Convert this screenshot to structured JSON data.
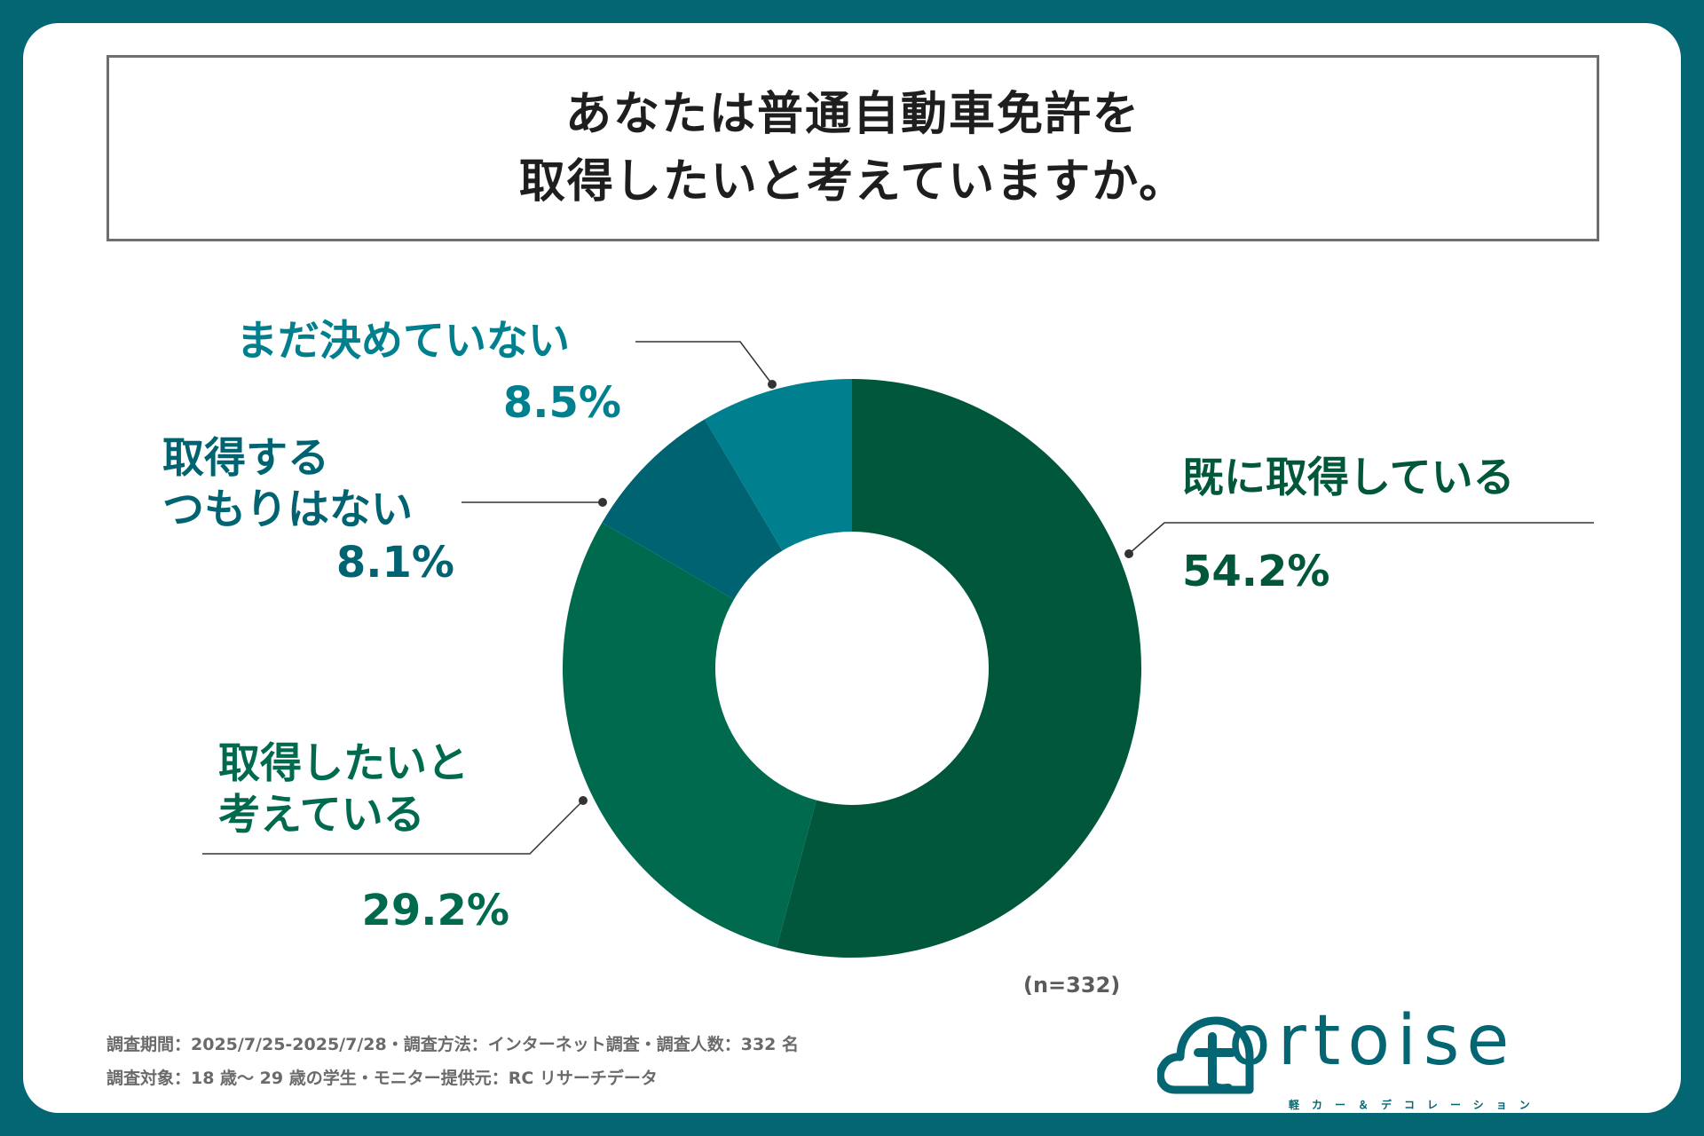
{
  "colors": {
    "background": "#046672",
    "frame": "#ffffff",
    "title_border": "#6e6e6e"
  },
  "title": {
    "line1": "あなたは普通自動車免許を",
    "line2": "取得したいと考えていますか。"
  },
  "sample_size": "(n=332)",
  "footnotes": {
    "line1": "調査期間：2025/7/25-2025/7/28・調査方法：インターネット調査・調査人数：332 名",
    "line2": "調査対象：18 歳〜 29 歳の学生・モニター提供元：RC リサーチデータ"
  },
  "logo": {
    "wordmark": "ortoise",
    "icon_letter": "t",
    "subtitle": "軽カー＆デコレーション"
  },
  "chart_data": {
    "type": "pie",
    "donut": true,
    "start_angle_deg": 0,
    "direction": "clockwise",
    "series": [
      {
        "name": "既に取得している",
        "label_lines": [
          "既に取得している"
        ],
        "value": 54.2,
        "value_label": "54.2%",
        "color": "#00573b",
        "label_color": "#00573b"
      },
      {
        "name": "取得したいと考えている",
        "label_lines": [
          "取得したいと",
          "考えている"
        ],
        "value": 29.2,
        "value_label": "29.2%",
        "color": "#006a4e",
        "label_color": "#006a4e"
      },
      {
        "name": "取得するつもりはない",
        "label_lines": [
          "取得する",
          "つもりはない"
        ],
        "value": 8.1,
        "value_label": "8.1%",
        "color": "#006371",
        "label_color": "#006371"
      },
      {
        "name": "まだ決めていない",
        "label_lines": [
          "まだ決めていない"
        ],
        "value": 8.5,
        "value_label": "8.5%",
        "color": "#00808f",
        "label_color": "#00808f"
      }
    ]
  }
}
